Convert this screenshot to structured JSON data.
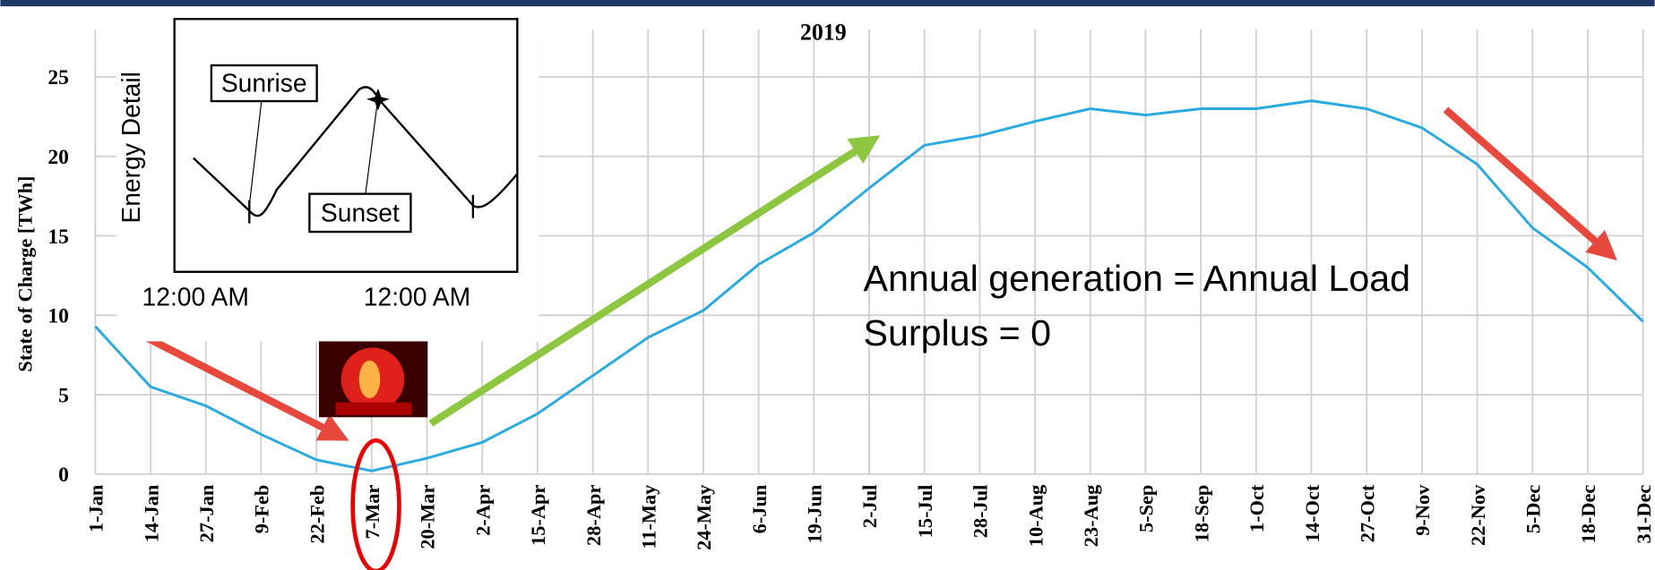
{
  "chart_data": {
    "type": "line",
    "title": "2019",
    "y_label": "State of Charge [TWh]",
    "categories": [
      "1-Jan",
      "14-Jan",
      "27-Jan",
      "9-Feb",
      "22-Feb",
      "7-Mar",
      "20-Mar",
      "2-Apr",
      "15-Apr",
      "28-Apr",
      "11-May",
      "24-May",
      "6-Jun",
      "19-Jun",
      "2-Jul",
      "15-Jul",
      "28-Jul",
      "10-Aug",
      "23-Aug",
      "5-Sep",
      "18-Sep",
      "1-Oct",
      "14-Oct",
      "27-Oct",
      "9-Nov",
      "22-Nov",
      "5-Dec",
      "18-Dec",
      "31-Dec"
    ],
    "values": [
      9.3,
      5.5,
      4.3,
      2.5,
      0.9,
      0.2,
      1.0,
      2.0,
      3.8,
      6.2,
      8.6,
      10.3,
      13.2,
      15.2,
      18.0,
      20.7,
      21.3,
      22.2,
      23.0,
      22.6,
      23.0,
      23.0,
      23.5,
      23.0,
      21.8,
      19.5,
      15.5,
      13.0,
      9.6
    ],
    "color": "#29abe2",
    "ylim": [
      0,
      28
    ],
    "yticks": [
      0,
      5,
      10,
      15,
      20,
      25
    ],
    "grid": true,
    "annotations": [
      "Annual generation = Annual Load",
      "Surplus = 0"
    ],
    "inset": {
      "y_label": "Energy Detail",
      "labels": [
        "Sunrise",
        "Sunset"
      ],
      "xticks": [
        "12:00 AM",
        "12:00 AM"
      ]
    }
  }
}
